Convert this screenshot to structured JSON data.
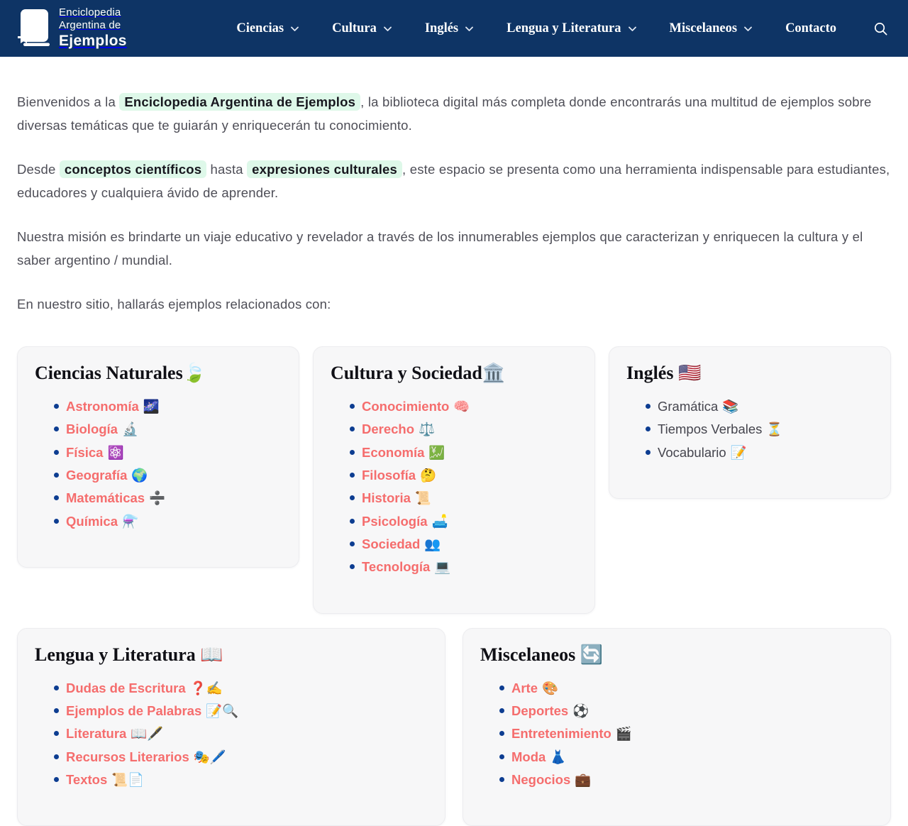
{
  "colors": {
    "header_bg": "#0e3465",
    "nav_text": "#ffffff",
    "body_text": "#4e4e57",
    "highlight_bg": "#def8e9",
    "link_accent": "#f56d6d",
    "bullet": "#0d3d91",
    "card_bg": "#f7f7f8"
  },
  "header": {
    "logo": {
      "icon": "book",
      "line1": "Enciclopedia",
      "line2": "Argentina de",
      "line3": "Ejemplos"
    },
    "nav": [
      {
        "label": "Ciencias",
        "has_dropdown": true
      },
      {
        "label": "Cultura",
        "has_dropdown": true
      },
      {
        "label": "Inglés",
        "has_dropdown": true
      },
      {
        "label": "Lengua y Literatura",
        "has_dropdown": true
      },
      {
        "label": "Miscelaneos",
        "has_dropdown": true
      },
      {
        "label": "Contacto",
        "has_dropdown": false
      }
    ],
    "dropdown_icon": "chevron-down",
    "search_icon": "magnifying-glass"
  },
  "intro": {
    "paragraphs": [
      [
        {
          "text": "Bienvenidos a la "
        },
        {
          "text": "Enciclopedia Argentina de Ejemplos",
          "highlight": true
        },
        {
          "text": ", la biblioteca digital más completa donde encontrarás una multitud de ejemplos sobre diversas temáticas que te guiarán y enriquecerán tu conocimiento."
        }
      ],
      [
        {
          "text": "Desde "
        },
        {
          "text": "conceptos científicos",
          "highlight": true
        },
        {
          "text": " hasta "
        },
        {
          "text": "expresiones culturales",
          "highlight": true
        },
        {
          "text": ", este espacio se presenta como una herramienta indispensable para estudiantes, educadores y cualquiera ávido de aprender."
        }
      ],
      [
        {
          "text": "Nuestra misión es brindarte un viaje educativo y revelador a través de los innumerables ejemplos que caracterizan y enriquecen la cultura y el saber argentino / mundial."
        }
      ],
      [
        {
          "text": "En nuestro sitio, hallarás ejemplos relacionados con:"
        }
      ]
    ]
  },
  "cards": {
    "rows": [
      [
        {
          "title": "Ciencias Naturales",
          "emoji": "🍃",
          "icon": "leaf-fluttering",
          "link_style": true,
          "items": [
            {
              "label": "Astronomía",
              "emoji": "🌌",
              "icon": "milky-way"
            },
            {
              "label": "Biología",
              "emoji": "🔬",
              "icon": "microscope"
            },
            {
              "label": "Física",
              "emoji": "⚛️",
              "icon": "atom-symbol"
            },
            {
              "label": "Geografía",
              "emoji": "🌍",
              "icon": "globe"
            },
            {
              "label": "Matemáticas",
              "emoji": "➗",
              "icon": "division-sign"
            },
            {
              "label": "Química",
              "emoji": "⚗️",
              "icon": "alembic"
            }
          ]
        },
        {
          "title": "Cultura y Sociedad",
          "emoji": "🏛️",
          "icon": "classical-building",
          "link_style": true,
          "items": [
            {
              "label": "Conocimiento",
              "emoji": "🧠",
              "icon": "brain"
            },
            {
              "label": "Derecho",
              "emoji": "⚖️",
              "icon": "balance-scale"
            },
            {
              "label": "Economía",
              "emoji": "💹",
              "icon": "chart-increasing-yen"
            },
            {
              "label": "Filosofía",
              "emoji": "🤔",
              "icon": "thinking-face"
            },
            {
              "label": "Historia",
              "emoji": "📜",
              "icon": "scroll"
            },
            {
              "label": "Psicología",
              "emoji": "🛋️",
              "icon": "couch-and-lamp"
            },
            {
              "label": "Sociedad",
              "emoji": "👥",
              "icon": "busts-in-silhouette"
            },
            {
              "label": "Tecnología",
              "emoji": "💻",
              "icon": "laptop"
            }
          ]
        },
        {
          "title": "Inglés ",
          "emoji": "🇺🇸",
          "icon": "us-flag",
          "link_style": false,
          "items": [
            {
              "label": "Gramática",
              "emoji": "📚",
              "icon": "books"
            },
            {
              "label": "Tiempos Verbales",
              "emoji": "⏳",
              "icon": "hourglass"
            },
            {
              "label": "Vocabulario",
              "emoji": "📝",
              "icon": "memo"
            }
          ]
        }
      ],
      [
        {
          "title": "Lengua y Literatura ",
          "emoji": "📖",
          "icon": "open-book",
          "link_style": true,
          "items": [
            {
              "label": "Dudas de Escritura",
              "emoji": "❓✍️",
              "icon": "question-mark-writing-hand"
            },
            {
              "label": "Ejemplos de Palabras",
              "emoji": "📝🔍",
              "icon": "memo-magnifier"
            },
            {
              "label": "Literatura",
              "emoji": "📖🖋️",
              "icon": "open-book-fountain-pen"
            },
            {
              "label": "Recursos Literarios",
              "emoji": "🎭🖊️",
              "icon": "performing-arts-pen"
            },
            {
              "label": "Textos",
              "emoji": "📜📄",
              "icon": "scroll-page"
            }
          ]
        },
        {
          "title": "Miscelaneos ",
          "emoji": "🔄",
          "icon": "arrows-cycle",
          "link_style": true,
          "items": [
            {
              "label": "Arte",
              "emoji": "🎨",
              "icon": "palette"
            },
            {
              "label": "Deportes",
              "emoji": "⚽",
              "icon": "soccer-ball"
            },
            {
              "label": "Entretenimiento",
              "emoji": "🎬",
              "icon": "clapper-board"
            },
            {
              "label": "Moda",
              "emoji": "👗",
              "icon": "dress"
            },
            {
              "label": "Negocios",
              "emoji": "💼",
              "icon": "briefcase"
            }
          ]
        }
      ]
    ]
  }
}
